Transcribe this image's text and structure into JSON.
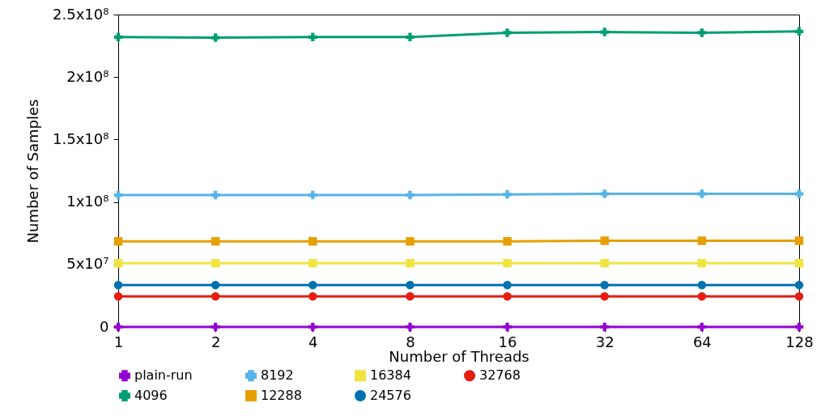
{
  "chart_data": {
    "type": "line",
    "xlabel": "Number of Threads",
    "ylabel": "Number of Samples",
    "categories": [
      "1",
      "2",
      "4",
      "8",
      "16",
      "32",
      "64",
      "128"
    ],
    "series": [
      {
        "name": "plain-run",
        "color": "#9400d3",
        "marker": "cross",
        "values": [
          0,
          0,
          0,
          0,
          0,
          0,
          0,
          0
        ]
      },
      {
        "name": "4096",
        "color": "#009e73",
        "marker": "cross",
        "values": [
          232000000,
          231500000,
          232000000,
          232000000,
          235500000,
          236000000,
          235500000,
          236500000
        ]
      },
      {
        "name": "8192",
        "color": "#56b4e9",
        "marker": "cross",
        "values": [
          105500000,
          105500000,
          105500000,
          105500000,
          106000000,
          106500000,
          106500000,
          106500000
        ]
      },
      {
        "name": "12288",
        "color": "#e69f00",
        "marker": "square",
        "values": [
          68500000,
          68500000,
          68500000,
          68500000,
          68500000,
          69000000,
          69000000,
          69000000
        ]
      },
      {
        "name": "16384",
        "color": "#f0e442",
        "marker": "square",
        "values": [
          51000000,
          51000000,
          51000000,
          51000000,
          51000000,
          51000000,
          51000000,
          51000000
        ]
      },
      {
        "name": "24576",
        "color": "#0072b2",
        "marker": "circle",
        "values": [
          33500000,
          33500000,
          33500000,
          33500000,
          33500000,
          33500000,
          33500000,
          33500000
        ]
      },
      {
        "name": "32768",
        "color": "#e51e10",
        "marker": "circle",
        "values": [
          24500000,
          24500000,
          24500000,
          24500000,
          24500000,
          24500000,
          24500000,
          24500000
        ]
      }
    ],
    "ylim": [
      0,
      250000000
    ],
    "yticks": [
      0,
      {
        "value": 50000000,
        "label": "5x10⁷"
      },
      {
        "value": 100000000,
        "label": "1x10⁸"
      },
      {
        "value": 150000000,
        "label": "1.5x10⁸"
      },
      {
        "value": 200000000,
        "label": "2x10⁸"
      },
      {
        "value": 250000000,
        "label": "2.5x10⁸"
      }
    ],
    "grid": false,
    "legend": "bottom"
  }
}
